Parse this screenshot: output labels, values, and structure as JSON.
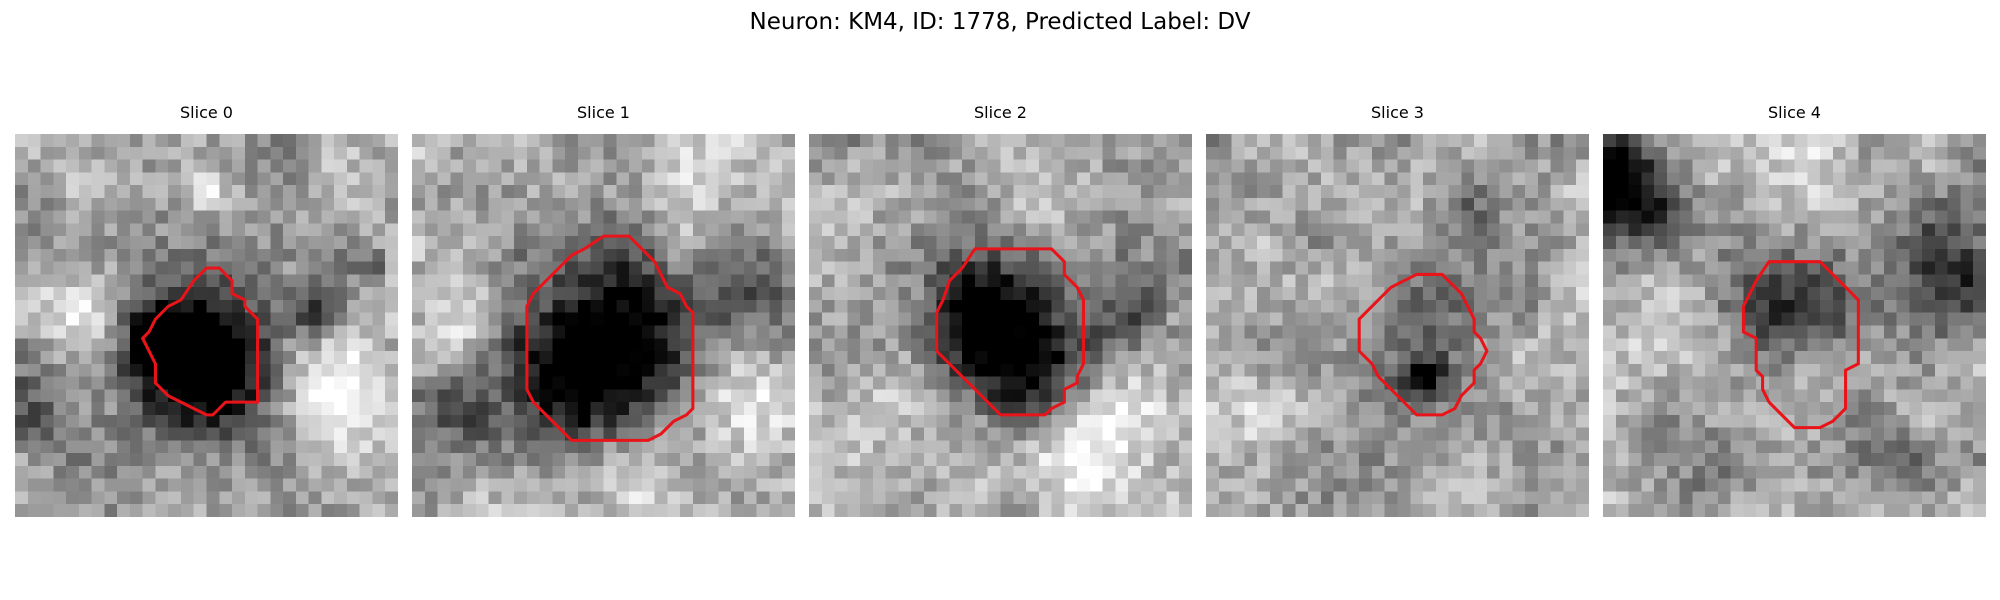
{
  "figure": {
    "title": "Neuron: KM4, ID: 1778, Predicted Label: DV",
    "colormap": "gray",
    "contour_color": "#e8141a"
  },
  "panels": [
    {
      "title": "Slice 0",
      "contour": [
        [
          14.5,
          10.0
        ],
        [
          15.5,
          10.0
        ],
        [
          16.5,
          11.0
        ],
        [
          16.5,
          12.0
        ],
        [
          17.5,
          12.5
        ],
        [
          17.5,
          13.0
        ],
        [
          18.5,
          14.0
        ],
        [
          18.5,
          20.5
        ],
        [
          16.0,
          20.5
        ],
        [
          15.0,
          21.5
        ],
        [
          14.5,
          21.5
        ],
        [
          13.5,
          21.0
        ],
        [
          12.5,
          20.5
        ],
        [
          11.5,
          20.0
        ],
        [
          10.5,
          19.0
        ],
        [
          10.5,
          17.5
        ],
        [
          10.0,
          16.5
        ],
        [
          9.5,
          15.5
        ],
        [
          10.0,
          15.0
        ],
        [
          10.5,
          14.0
        ],
        [
          11.5,
          13.0
        ],
        [
          12.5,
          12.5
        ],
        [
          13.5,
          11.0
        ]
      ],
      "dark_blobs": [
        [
          13.5,
          16.5,
          4.5,
          0.55
        ],
        [
          15.5,
          18.5,
          3.5,
          0.5
        ],
        [
          10.5,
          15.5,
          2.0,
          0.45
        ],
        [
          23.0,
          13.5,
          1.5,
          0.5
        ],
        [
          0.5,
          21.5,
          2.5,
          0.4
        ],
        [
          27.5,
          10.0,
          1.0,
          0.3
        ]
      ],
      "light_blobs": [
        [
          24.5,
          18.5,
          3.5,
          0.35
        ],
        [
          5.5,
          14.0,
          2.5,
          0.25
        ],
        [
          14.5,
          4.0,
          1.0,
          0.3
        ]
      ]
    },
    {
      "title": "Slice 1",
      "contour": [
        [
          14.5,
          7.5
        ],
        [
          16.5,
          7.5
        ],
        [
          17.5,
          8.5
        ],
        [
          18.5,
          9.5
        ],
        [
          19.0,
          10.5
        ],
        [
          19.5,
          11.5
        ],
        [
          20.5,
          12.0
        ],
        [
          21.0,
          13.0
        ],
        [
          21.5,
          13.5
        ],
        [
          21.5,
          21.0
        ],
        [
          21.0,
          21.5
        ],
        [
          20.0,
          22.0
        ],
        [
          19.0,
          23.0
        ],
        [
          18.0,
          23.5
        ],
        [
          12.0,
          23.5
        ],
        [
          11.0,
          22.5
        ],
        [
          10.0,
          21.5
        ],
        [
          9.0,
          20.5
        ],
        [
          8.5,
          19.5
        ],
        [
          8.5,
          13.0
        ],
        [
          9.0,
          12.0
        ],
        [
          10.0,
          11.0
        ],
        [
          11.0,
          10.0
        ],
        [
          12.0,
          9.0
        ],
        [
          13.0,
          8.5
        ]
      ],
      "dark_blobs": [
        [
          14.5,
          16.5,
          6.0,
          0.55
        ],
        [
          13.0,
          19.5,
          4.0,
          0.4
        ],
        [
          16.5,
          13.0,
          3.0,
          0.3
        ],
        [
          1.5,
          21.0,
          3.0,
          0.3
        ],
        [
          27.5,
          11.5,
          2.5,
          0.3
        ]
      ],
      "light_blobs": [
        [
          16.5,
          25.5,
          4.0,
          0.4
        ],
        [
          3.0,
          15.5,
          3.0,
          0.3
        ],
        [
          25.5,
          20.5,
          3.0,
          0.3
        ],
        [
          22.5,
          3.5,
          4.0,
          0.2
        ]
      ]
    },
    {
      "title": "Slice 2",
      "contour": [
        [
          12.5,
          8.5
        ],
        [
          18.5,
          8.5
        ],
        [
          19.5,
          9.5
        ],
        [
          19.5,
          10.5
        ],
        [
          20.5,
          11.5
        ],
        [
          21.0,
          12.5
        ],
        [
          21.0,
          17.5
        ],
        [
          20.5,
          18.5
        ],
        [
          20.5,
          19.0
        ],
        [
          19.5,
          19.5
        ],
        [
          19.5,
          20.5
        ],
        [
          18.5,
          21.0
        ],
        [
          18.0,
          21.5
        ],
        [
          14.5,
          21.5
        ],
        [
          13.5,
          20.5
        ],
        [
          12.5,
          19.5
        ],
        [
          11.5,
          18.5
        ],
        [
          10.5,
          17.5
        ],
        [
          9.5,
          16.5
        ],
        [
          9.5,
          13.5
        ],
        [
          10.0,
          12.5
        ],
        [
          10.5,
          11.0
        ],
        [
          11.5,
          10.0
        ]
      ],
      "dark_blobs": [
        [
          12.5,
          13.5,
          3.5,
          0.5
        ],
        [
          15.5,
          15.5,
          3.5,
          0.45
        ],
        [
          17.5,
          18.5,
          2.5,
          0.35
        ],
        [
          24.5,
          13.5,
          2.5,
          0.3
        ],
        [
          29.5,
          10.0,
          1.5,
          0.25
        ]
      ],
      "light_blobs": [
        [
          21.5,
          24.5,
          4.0,
          0.3
        ],
        [
          7.0,
          20.0,
          2.5,
          0.2
        ]
      ]
    },
    {
      "title": "Slice 3",
      "contour": [
        [
          16.0,
          10.5
        ],
        [
          18.0,
          10.5
        ],
        [
          19.5,
          12.0
        ],
        [
          20.0,
          13.0
        ],
        [
          20.5,
          14.0
        ],
        [
          20.5,
          15.0
        ],
        [
          21.0,
          15.5
        ],
        [
          21.5,
          16.5
        ],
        [
          21.0,
          17.5
        ],
        [
          20.5,
          18.0
        ],
        [
          20.5,
          19.0
        ],
        [
          19.5,
          20.0
        ],
        [
          19.0,
          21.0
        ],
        [
          18.0,
          21.5
        ],
        [
          16.0,
          21.5
        ],
        [
          15.0,
          20.5
        ],
        [
          14.0,
          19.5
        ],
        [
          13.0,
          18.5
        ],
        [
          12.5,
          17.5
        ],
        [
          11.5,
          16.5
        ],
        [
          11.5,
          14.0
        ],
        [
          12.5,
          13.0
        ],
        [
          14.0,
          11.5
        ],
        [
          15.0,
          11.0
        ]
      ],
      "dark_blobs": [
        [
          16.5,
          16.5,
          3.5,
          0.35
        ],
        [
          16.5,
          18.5,
          1.2,
          0.45
        ],
        [
          19.5,
          5.0,
          1.5,
          0.2
        ]
      ],
      "light_blobs": [
        [
          4.5,
          22.5,
          3.0,
          0.15
        ]
      ]
    },
    {
      "title": "Slice 4",
      "contour": [
        [
          12.5,
          9.5
        ],
        [
          16.5,
          9.5
        ],
        [
          17.5,
          10.5
        ],
        [
          18.5,
          11.5
        ],
        [
          19.0,
          12.0
        ],
        [
          19.5,
          12.5
        ],
        [
          19.5,
          17.5
        ],
        [
          18.5,
          18.0
        ],
        [
          18.5,
          21.0
        ],
        [
          17.5,
          22.0
        ],
        [
          16.5,
          22.5
        ],
        [
          14.5,
          22.5
        ],
        [
          13.5,
          21.5
        ],
        [
          12.5,
          20.5
        ],
        [
          12.0,
          19.5
        ],
        [
          12.0,
          18.5
        ],
        [
          11.5,
          18.0
        ],
        [
          11.5,
          15.5
        ],
        [
          10.5,
          15.0
        ],
        [
          10.5,
          13.0
        ],
        [
          11.0,
          12.0
        ],
        [
          11.5,
          11.0
        ]
      ],
      "dark_blobs": [
        [
          15.0,
          13.5,
          3.5,
          0.45
        ],
        [
          1.5,
          5.0,
          2.5,
          0.55
        ],
        [
          0.5,
          2.0,
          2.0,
          0.4
        ],
        [
          8.5,
          25.5,
          2.5,
          0.25
        ],
        [
          26.0,
          8.0,
          3.0,
          0.3
        ],
        [
          28.5,
          12.0,
          2.5,
          0.25
        ],
        [
          21.5,
          24.5,
          2.0,
          0.25
        ]
      ],
      "light_blobs": [
        [
          15.0,
          19.5,
          2.5,
          0.2
        ],
        [
          4.5,
          12.5,
          2.5,
          0.2
        ],
        [
          14.5,
          3.5,
          2.5,
          0.2
        ]
      ]
    }
  ]
}
